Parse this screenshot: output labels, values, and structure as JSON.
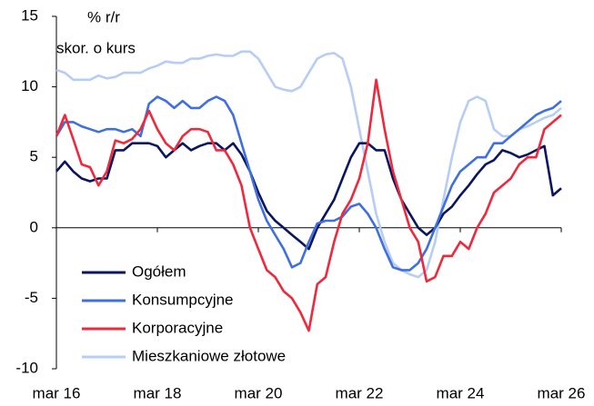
{
  "chart_data": {
    "type": "line",
    "annotations": [
      "% r/r",
      "skor. o kurs"
    ],
    "categories": [
      "mar 16",
      null,
      null,
      null,
      null,
      null,
      null,
      null,
      null,
      null,
      null,
      null,
      "mar 18",
      null,
      null,
      null,
      null,
      null,
      null,
      null,
      null,
      null,
      null,
      null,
      "mar 20",
      null,
      null,
      null,
      null,
      null,
      null,
      null,
      null,
      null,
      null,
      null,
      "mar 22",
      null,
      null,
      null,
      null,
      null,
      null,
      null,
      null,
      null,
      null,
      null,
      "mar 24",
      null,
      null,
      null,
      null,
      null,
      null,
      null,
      null,
      null,
      null,
      null,
      "mar 26"
    ],
    "series": [
      {
        "name": "Ogółem",
        "color": "#0b1560",
        "values": [
          4,
          4.7,
          4,
          3.5,
          3.3,
          3.5,
          3.5,
          5.5,
          5.5,
          6,
          6,
          6,
          5.8,
          5,
          5.5,
          6,
          5.5,
          5.8,
          6,
          6,
          5.5,
          6,
          5.2,
          4,
          2.5,
          1.2,
          0.5,
          0,
          -0.5,
          -1,
          -1.5,
          0,
          1,
          2,
          3.5,
          5,
          6,
          6,
          5.5,
          5.5,
          3.5,
          2,
          1,
          0,
          -0.5,
          0,
          1,
          1.5,
          2.3,
          3,
          3.8,
          4.5,
          4.8,
          5.5,
          5.3,
          5,
          5.2,
          5.5,
          5.8,
          2.3,
          2.8
        ]
      },
      {
        "name": "Konsumpcyjne",
        "color": "#3f6fe0",
        "values": [
          6.5,
          7.5,
          7.5,
          7.2,
          7,
          6.8,
          7,
          7,
          6.8,
          7,
          6.5,
          8.8,
          9.3,
          9,
          8.5,
          9,
          8.5,
          8.5,
          9,
          9.3,
          9,
          8,
          6,
          4,
          2,
          0.5,
          -0.5,
          -1.5,
          -2.8,
          -2.5,
          -1,
          0.3,
          0.5,
          0.5,
          0.8,
          1.5,
          1.7,
          1,
          0,
          -1.5,
          -2.8,
          -3,
          -3,
          -2.5,
          -1.5,
          0,
          1.5,
          3,
          4,
          4.5,
          5,
          5,
          6,
          6,
          6.5,
          7,
          7.5,
          8,
          8.3,
          8.5,
          9
        ]
      },
      {
        "name": "Korporacyjne",
        "color": "#f0283c",
        "values": [
          6.5,
          8,
          6.3,
          4.5,
          4.3,
          3,
          4,
          6.2,
          6,
          6.3,
          7,
          8.3,
          7,
          6,
          5.5,
          6.5,
          7,
          7,
          6.8,
          5.5,
          5.5,
          4.5,
          3,
          0,
          -1.5,
          -3,
          -3.5,
          -4.5,
          -5,
          -6,
          -7.3,
          -4,
          -3.5,
          -1,
          1,
          2,
          3.5,
          6,
          10.5,
          7,
          4,
          2,
          0,
          -1,
          -3.8,
          -3.5,
          -2,
          -2,
          -1,
          -1.5,
          0,
          1,
          2.5,
          3,
          3.5,
          4.5,
          5,
          5,
          7,
          7.5,
          8
        ]
      },
      {
        "name": "Mieszkaniowe złotowe",
        "color": "#b6cdf5",
        "values": [
          11.2,
          11,
          10.5,
          10.5,
          10.5,
          10.8,
          10.6,
          10.7,
          11,
          11,
          11,
          11.3,
          11.5,
          11.8,
          11.7,
          11.7,
          12,
          12,
          12.2,
          12.3,
          12.2,
          12.2,
          12.5,
          12.5,
          12,
          11,
          10,
          9.8,
          9.7,
          10,
          11,
          12,
          12.3,
          12.4,
          12,
          10,
          7,
          4,
          1,
          -1,
          -2.5,
          -3,
          -3.3,
          -3.5,
          -3,
          -1,
          2,
          5,
          7.5,
          9,
          9.3,
          9,
          7,
          6.5,
          6.5,
          7,
          7.2,
          7.5,
          7.8,
          8,
          8.5
        ]
      }
    ],
    "ylim": [
      -10,
      15
    ],
    "yticks": [
      -10,
      -5,
      0,
      5,
      10,
      15
    ],
    "legend": "lower-left"
  }
}
